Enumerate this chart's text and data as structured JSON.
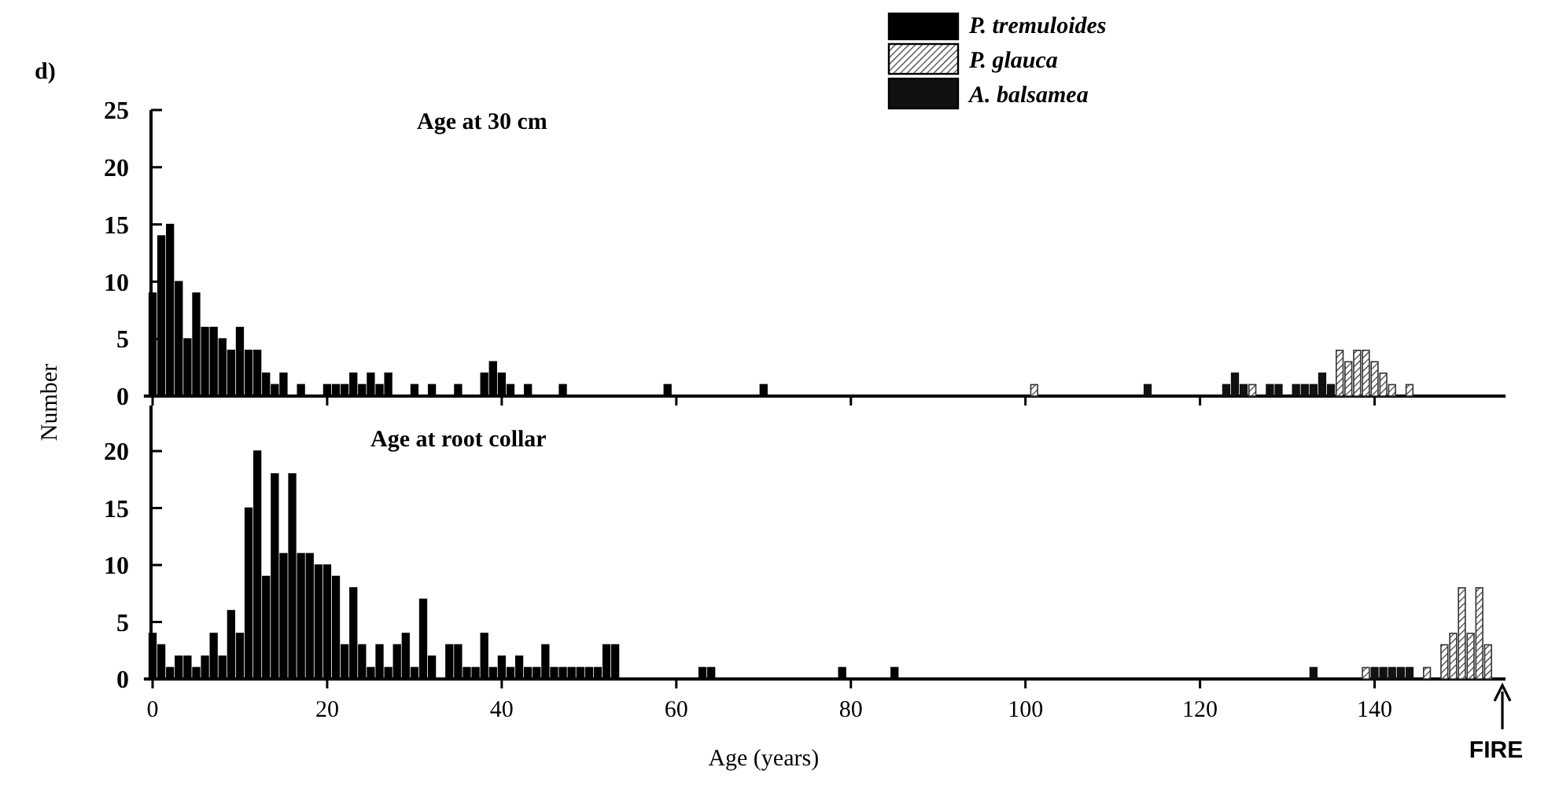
{
  "chart_data": [
    {
      "type": "bar",
      "title": "Age at 30 cm",
      "ylabel": "Number",
      "xlim": [
        -1,
        155
      ],
      "ylim": [
        0,
        25
      ],
      "yticks": [
        0,
        5,
        10,
        15,
        20,
        25
      ],
      "xticks": [
        0,
        20,
        40,
        60,
        80,
        100,
        120,
        140
      ],
      "tick_labels": "y",
      "legend": "top",
      "annotations": [
        "d)"
      ],
      "series": [
        {
          "name": "P. tremuloides",
          "color": "#000000",
          "x": [
            0,
            1,
            2,
            3,
            4,
            5,
            6,
            7,
            8,
            9,
            10,
            11,
            12,
            13,
            14,
            15,
            17,
            20,
            21,
            22,
            23,
            24,
            25,
            26,
            27,
            30,
            32,
            35,
            38,
            39,
            40,
            41,
            43,
            47,
            59,
            70
          ],
          "values": [
            9,
            14,
            15,
            10,
            5,
            9,
            6,
            6,
            5,
            4,
            6,
            4,
            4,
            2,
            1,
            2,
            1,
            1,
            1,
            1,
            2,
            1,
            2,
            1,
            2,
            1,
            1,
            1,
            2,
            3,
            2,
            1,
            1,
            1,
            1,
            1
          ]
        },
        {
          "name": "P. glauca",
          "color": "#333333",
          "x": [
            101,
            126,
            136,
            137,
            138,
            139,
            140,
            141,
            142,
            144
          ],
          "values": [
            1,
            1,
            4,
            3,
            4,
            4,
            3,
            2,
            1,
            1
          ]
        },
        {
          "name": "A. balsamea",
          "color": "#111111",
          "x": [
            114,
            123,
            124,
            125,
            128,
            129,
            131,
            132,
            133,
            134,
            135
          ],
          "values": [
            1,
            1,
            2,
            1,
            1,
            1,
            1,
            1,
            1,
            2,
            1
          ]
        }
      ]
    },
    {
      "type": "bar",
      "title": "Age at root collar",
      "xlabel": "Age (years)",
      "xlim": [
        -1,
        155
      ],
      "ylim": [
        0,
        24
      ],
      "yticks": [
        0,
        5,
        10,
        15,
        20
      ],
      "xticks": [
        0,
        20,
        40,
        60,
        80,
        100,
        120,
        140
      ],
      "annotations": [
        "FIRE"
      ],
      "series": [
        {
          "color": "#000000",
          "x": [
            0,
            1,
            2,
            3,
            4,
            5,
            6,
            7,
            8,
            9,
            10,
            11,
            12,
            13,
            14,
            15,
            16,
            17,
            18,
            19,
            20,
            21,
            22,
            23,
            24,
            25,
            26,
            27,
            28,
            29,
            30,
            31,
            32,
            34,
            35,
            36,
            37,
            38,
            39,
            40,
            41,
            42,
            43,
            44,
            45,
            46,
            47,
            48,
            49,
            50,
            51,
            52,
            53,
            63,
            64,
            79,
            85
          ],
          "values": [
            4,
            3,
            1,
            2,
            2,
            1,
            2,
            4,
            2,
            6,
            4,
            15,
            20,
            9,
            18,
            11,
            18,
            11,
            11,
            10,
            10,
            9,
            3,
            8,
            3,
            1,
            3,
            1,
            3,
            4,
            1,
            7,
            2,
            3,
            3,
            1,
            1,
            4,
            1,
            2,
            1,
            2,
            1,
            1,
            3,
            1,
            1,
            1,
            1,
            1,
            1,
            3,
            3,
            1,
            1,
            1,
            1
          ]
        },
        {
          "color": "#333333",
          "x": [
            139,
            146,
            148,
            149,
            150,
            151,
            152,
            153
          ],
          "values": [
            1,
            1,
            3,
            4,
            8,
            4,
            8,
            3
          ]
        },
        {
          "color": "#111111",
          "x": [
            133,
            140,
            141,
            142,
            143,
            144
          ],
          "values": [
            1,
            1,
            1,
            1,
            1,
            1
          ]
        }
      ]
    }
  ]
}
